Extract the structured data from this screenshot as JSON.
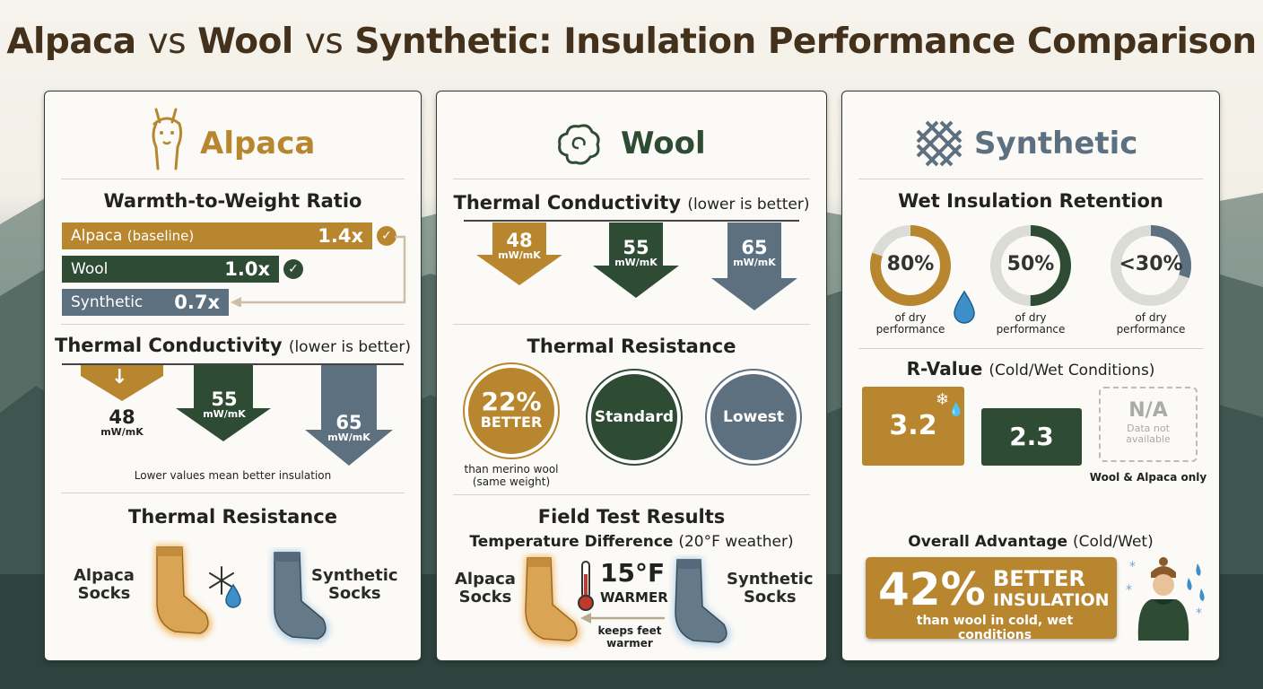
{
  "title": {
    "alpaca": "Alpaca",
    "vs1": "vs",
    "wool": "Wool",
    "vs2": "vs",
    "rest": "Synthetic: Insulation Performance Comparison"
  },
  "colors": {
    "alpaca": "#b8862f",
    "wool": "#2e4b33",
    "synthetic": "#5c7080",
    "title": "#43311c"
  },
  "alpaca_panel": {
    "header": "Alpaca",
    "icon": "alpaca-icon",
    "warmth": {
      "title": "Warmth-to-Weight Ratio",
      "bars": [
        {
          "label": "Alpaca",
          "label_note": "(baseline)",
          "value": "1.4x",
          "ratio": 1.4
        },
        {
          "label": "Wool",
          "label_note": "",
          "value": "1.0x",
          "ratio": 1.0
        },
        {
          "label": "Synthetic",
          "label_note": "",
          "value": "0.7x",
          "ratio": 0.7
        }
      ]
    },
    "conductivity": {
      "title": "Thermal Conductivity",
      "title_note": "(lower is better)",
      "arrows": [
        {
          "value": "48",
          "unit": "mW/mK"
        },
        {
          "value": "55",
          "unit": "mW/mK"
        },
        {
          "value": "65",
          "unit": "mW/mK"
        }
      ],
      "footnote": "Lower values mean better insulation"
    },
    "resistance": {
      "title": "Thermal Resistance",
      "left_label_1": "Alpaca",
      "left_label_2": "Socks",
      "right_label_1": "Synthetic",
      "right_label_2": "Socks"
    }
  },
  "wool_panel": {
    "header": "Wool",
    "icon": "wool-icon",
    "conductivity": {
      "title": "Thermal Conductivity",
      "title_note": "(lower is better)",
      "arrows": [
        {
          "value": "48",
          "unit": "mW/mK"
        },
        {
          "value": "55",
          "unit": "mW/mK"
        },
        {
          "value": "65",
          "unit": "mW/mK"
        }
      ]
    },
    "resistance": {
      "title": "Thermal Resistance",
      "circle1_big": "22%",
      "circle1_small": "BETTER",
      "circle1_note_1": "than merino wool",
      "circle1_note_2": "(same weight)",
      "circle2": "Standard",
      "circle3": "Lowest"
    },
    "field": {
      "title": "Field Test Results",
      "subtitle": "Temperature Difference",
      "subtitle_note": "(20°F weather)",
      "left_label_1": "Alpaca",
      "left_label_2": "Socks",
      "right_label_1": "Synthetic",
      "right_label_2": "Socks",
      "temp": "15°F",
      "temp_note": "WARMER",
      "arrow_note_1": "keeps feet",
      "arrow_note_2": "warmer"
    }
  },
  "synthetic_panel": {
    "header": "Synthetic",
    "icon": "woven-fabric-icon",
    "wet": {
      "title": "Wet Insulation Retention",
      "rings": [
        {
          "label": "80%",
          "fraction": 0.8,
          "sub1": "of dry",
          "sub2": "performance"
        },
        {
          "label": "50%",
          "fraction": 0.5,
          "sub1": "of dry",
          "sub2": "performance"
        },
        {
          "label": "<30%",
          "fraction": 0.3,
          "sub1": "of dry",
          "sub2": "performance"
        }
      ]
    },
    "rvalue": {
      "title": "R-Value",
      "title_note": "(Cold/Wet Conditions)",
      "alpaca": "3.2",
      "wool": "2.3",
      "synthetic": "N/A",
      "synthetic_note_1": "Data not",
      "synthetic_note_2": "available",
      "footnote": "Wool & Alpaca only"
    },
    "advantage": {
      "title": "Overall Advantage",
      "title_note": "(Cold/Wet)",
      "big": "42%",
      "line1": "BETTER",
      "line2": "INSULATION",
      "line3": "than wool in cold, wet conditions"
    }
  }
}
